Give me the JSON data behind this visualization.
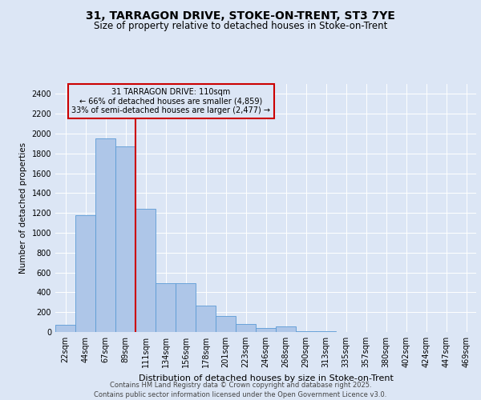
{
  "title_line1": "31, TARRAGON DRIVE, STOKE-ON-TRENT, ST3 7YE",
  "title_line2": "Size of property relative to detached houses in Stoke-on-Trent",
  "xlabel": "Distribution of detached houses by size in Stoke-on-Trent",
  "ylabel": "Number of detached properties",
  "bar_labels": [
    "22sqm",
    "44sqm",
    "67sqm",
    "89sqm",
    "111sqm",
    "134sqm",
    "156sqm",
    "178sqm",
    "201sqm",
    "223sqm",
    "246sqm",
    "268sqm",
    "290sqm",
    "313sqm",
    "335sqm",
    "357sqm",
    "380sqm",
    "402sqm",
    "424sqm",
    "447sqm",
    "469sqm"
  ],
  "bar_values": [
    70,
    1180,
    1950,
    1870,
    1240,
    490,
    490,
    265,
    160,
    80,
    40,
    55,
    8,
    5,
    3,
    2,
    2,
    1,
    1,
    1,
    1
  ],
  "bar_color": "#aec6e8",
  "bar_edge_color": "#5b9bd5",
  "vline_x": 3.5,
  "vline_color": "#cc0000",
  "annotation_line1": "31 TARRAGON DRIVE: 110sqm",
  "annotation_line2": "← 66% of detached houses are smaller (4,859)",
  "annotation_line3": "33% of semi-detached houses are larger (2,477) →",
  "annotation_box_edgecolor": "#cc0000",
  "ylim_max": 2500,
  "yticks": [
    0,
    200,
    400,
    600,
    800,
    1000,
    1200,
    1400,
    1600,
    1800,
    2000,
    2200,
    2400
  ],
  "bg_color": "#dce6f5",
  "grid_color": "#ffffff",
  "footer_line1": "Contains HM Land Registry data © Crown copyright and database right 2025.",
  "footer_line2": "Contains public sector information licensed under the Open Government Licence v3.0.",
  "title1_fontsize": 10,
  "title2_fontsize": 8.5,
  "xlabel_fontsize": 8,
  "ylabel_fontsize": 7.5,
  "tick_fontsize": 7,
  "annot_fontsize": 7,
  "footer_fontsize": 6
}
